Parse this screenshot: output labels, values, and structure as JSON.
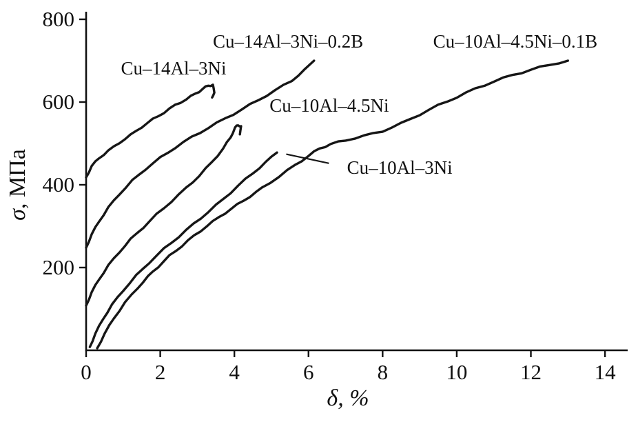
{
  "chart_data": {
    "type": "line",
    "title": "",
    "xlabel": "δ, %",
    "ylabel": "σ, МПа",
    "xlim": [
      0,
      14.5
    ],
    "ylim": [
      0,
      800
    ],
    "x_ticks": [
      0,
      2,
      4,
      6,
      8,
      10,
      12,
      14
    ],
    "y_ticks": [
      200,
      400,
      600,
      800
    ],
    "grid": false,
    "legend_position": "none",
    "line_color": "#161616",
    "axis_color": "#111111",
    "series": [
      {
        "name": "Cu–14Al–3Ni",
        "points": [
          [
            0,
            418
          ],
          [
            0.15,
            445
          ],
          [
            0.35,
            465
          ],
          [
            0.6,
            482
          ],
          [
            0.9,
            502
          ],
          [
            1.2,
            520
          ],
          [
            1.5,
            540
          ],
          [
            1.8,
            558
          ],
          [
            2.1,
            575
          ],
          [
            2.4,
            592
          ],
          [
            2.7,
            607
          ],
          [
            2.95,
            620
          ],
          [
            3.15,
            632
          ],
          [
            3.3,
            640
          ],
          [
            3.42,
            641
          ],
          [
            3.46,
            624
          ],
          [
            3.4,
            611
          ]
        ]
      },
      {
        "name": "Cu–14Al–3Ni–0.2B",
        "points": [
          [
            0,
            248
          ],
          [
            0.15,
            280
          ],
          [
            0.35,
            312
          ],
          [
            0.6,
            345
          ],
          [
            0.9,
            378
          ],
          [
            1.25,
            410
          ],
          [
            1.6,
            438
          ],
          [
            2.0,
            465
          ],
          [
            2.4,
            490
          ],
          [
            2.85,
            515
          ],
          [
            3.3,
            538
          ],
          [
            3.75,
            560
          ],
          [
            4.2,
            582
          ],
          [
            4.65,
            605
          ],
          [
            5.1,
            628
          ],
          [
            5.55,
            652
          ],
          [
            5.9,
            678
          ],
          [
            6.15,
            700
          ]
        ]
      },
      {
        "name": "Cu–10Al–4.5Ni",
        "points": [
          [
            0,
            108
          ],
          [
            0.15,
            140
          ],
          [
            0.35,
            172
          ],
          [
            0.6,
            205
          ],
          [
            0.9,
            238
          ],
          [
            1.2,
            268
          ],
          [
            1.55,
            298
          ],
          [
            1.9,
            328
          ],
          [
            2.3,
            360
          ],
          [
            2.7,
            392
          ],
          [
            3.05,
            422
          ],
          [
            3.4,
            455
          ],
          [
            3.7,
            488
          ],
          [
            3.9,
            515
          ],
          [
            4.02,
            538
          ],
          [
            4.1,
            545
          ],
          [
            4.18,
            540
          ],
          [
            4.15,
            522
          ]
        ]
      },
      {
        "name": "Cu–10Al–3Ni",
        "points": [
          [
            0.1,
            8
          ],
          [
            0.25,
            40
          ],
          [
            0.45,
            75
          ],
          [
            0.7,
            110
          ],
          [
            1.0,
            145
          ],
          [
            1.35,
            180
          ],
          [
            1.7,
            212
          ],
          [
            2.1,
            245
          ],
          [
            2.5,
            275
          ],
          [
            2.9,
            305
          ],
          [
            3.3,
            335
          ],
          [
            3.7,
            365
          ],
          [
            4.1,
            398
          ],
          [
            4.5,
            428
          ],
          [
            4.85,
            455
          ],
          [
            5.15,
            478
          ]
        ]
      },
      {
        "name": "Cu–10Al–4.5Ni–0.1B",
        "points": [
          [
            0.3,
            5
          ],
          [
            0.5,
            40
          ],
          [
            0.75,
            78
          ],
          [
            1.05,
            115
          ],
          [
            1.4,
            152
          ],
          [
            1.8,
            190
          ],
          [
            2.25,
            228
          ],
          [
            2.75,
            265
          ],
          [
            3.25,
            300
          ],
          [
            3.75,
            332
          ],
          [
            4.25,
            362
          ],
          [
            4.75,
            392
          ],
          [
            5.2,
            420
          ],
          [
            5.65,
            448
          ],
          [
            6.0,
            470
          ],
          [
            6.3,
            488
          ],
          [
            6.6,
            498
          ],
          [
            7.0,
            508
          ],
          [
            7.5,
            518
          ],
          [
            8.0,
            530
          ],
          [
            8.5,
            548
          ],
          [
            9.0,
            570
          ],
          [
            9.5,
            592
          ],
          [
            10.0,
            612
          ],
          [
            10.5,
            632
          ],
          [
            11.0,
            650
          ],
          [
            11.5,
            665
          ],
          [
            12.0,
            678
          ],
          [
            12.5,
            690
          ],
          [
            13.0,
            700
          ]
        ]
      }
    ],
    "annotations": [
      {
        "text": "Cu–14Al–3Ni",
        "x": 2.36,
        "y": 682
      },
      {
        "text": "Cu–14Al–3Ni–0.2B",
        "x": 5.45,
        "y": 747
      },
      {
        "text": "Cu–10Al–4.5Ni",
        "x": 6.56,
        "y": 592
      },
      {
        "text": "Cu–10Al–3Ni",
        "x": 8.46,
        "y": 442,
        "leader": {
          "from": [
            6.55,
            452
          ],
          "to": [
            5.4,
            474
          ]
        }
      },
      {
        "text": "Cu–10Al–4.5Ni–0.1B",
        "x": 11.58,
        "y": 747
      }
    ]
  }
}
